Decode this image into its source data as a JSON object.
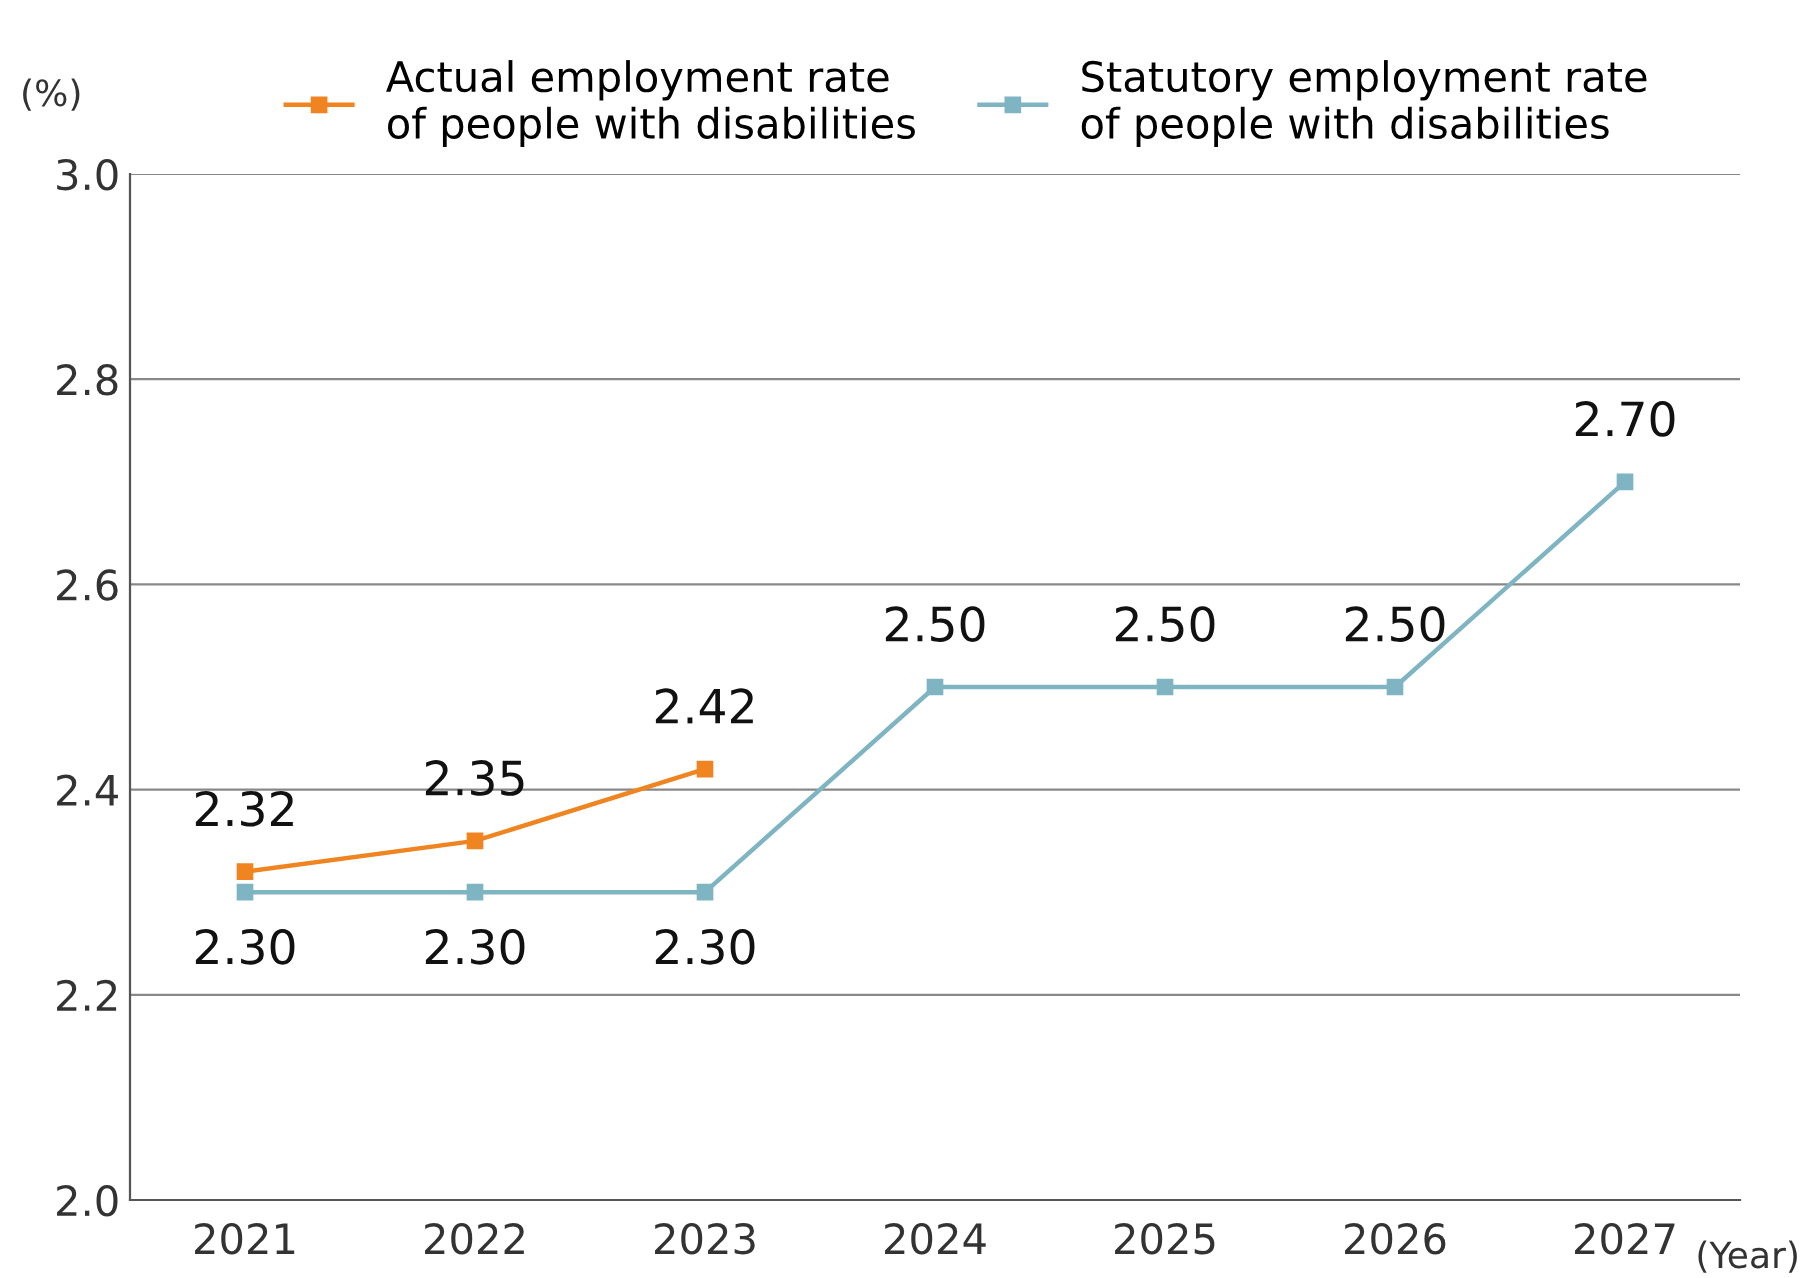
{
  "chart_data": {
    "type": "line",
    "ylabel": "(%)",
    "xlabel": "(Year)",
    "categories": [
      "2021",
      "2022",
      "2023",
      "2024",
      "2025",
      "2026",
      "2027"
    ],
    "series": [
      {
        "name": "Actual employment rate\nof people with disabilities",
        "color": "#ef8421",
        "values": [
          2.32,
          2.35,
          2.42,
          null,
          null,
          null,
          null
        ],
        "value_labels": [
          "2.32",
          "2.35",
          "2.42",
          null,
          null,
          null,
          null
        ]
      },
      {
        "name": "Statutory employment rate\nof people with disabilities",
        "color": "#7fb4c2",
        "values": [
          2.3,
          2.3,
          2.3,
          2.5,
          2.5,
          2.5,
          2.7
        ],
        "value_labels": [
          "2.30",
          "2.30",
          "2.30",
          "2.50",
          "2.50",
          "2.50",
          "2.70"
        ]
      }
    ],
    "ylim": [
      2.0,
      3.0
    ],
    "yticks": [
      {
        "value": 2.0,
        "label": "2.0"
      },
      2.2,
      2.4,
      2.6,
      2.8,
      {
        "value": 3.0,
        "label": "3.0"
      }
    ],
    "grid": "y",
    "legend": "top",
    "marker": "square",
    "line_style": "solid"
  }
}
